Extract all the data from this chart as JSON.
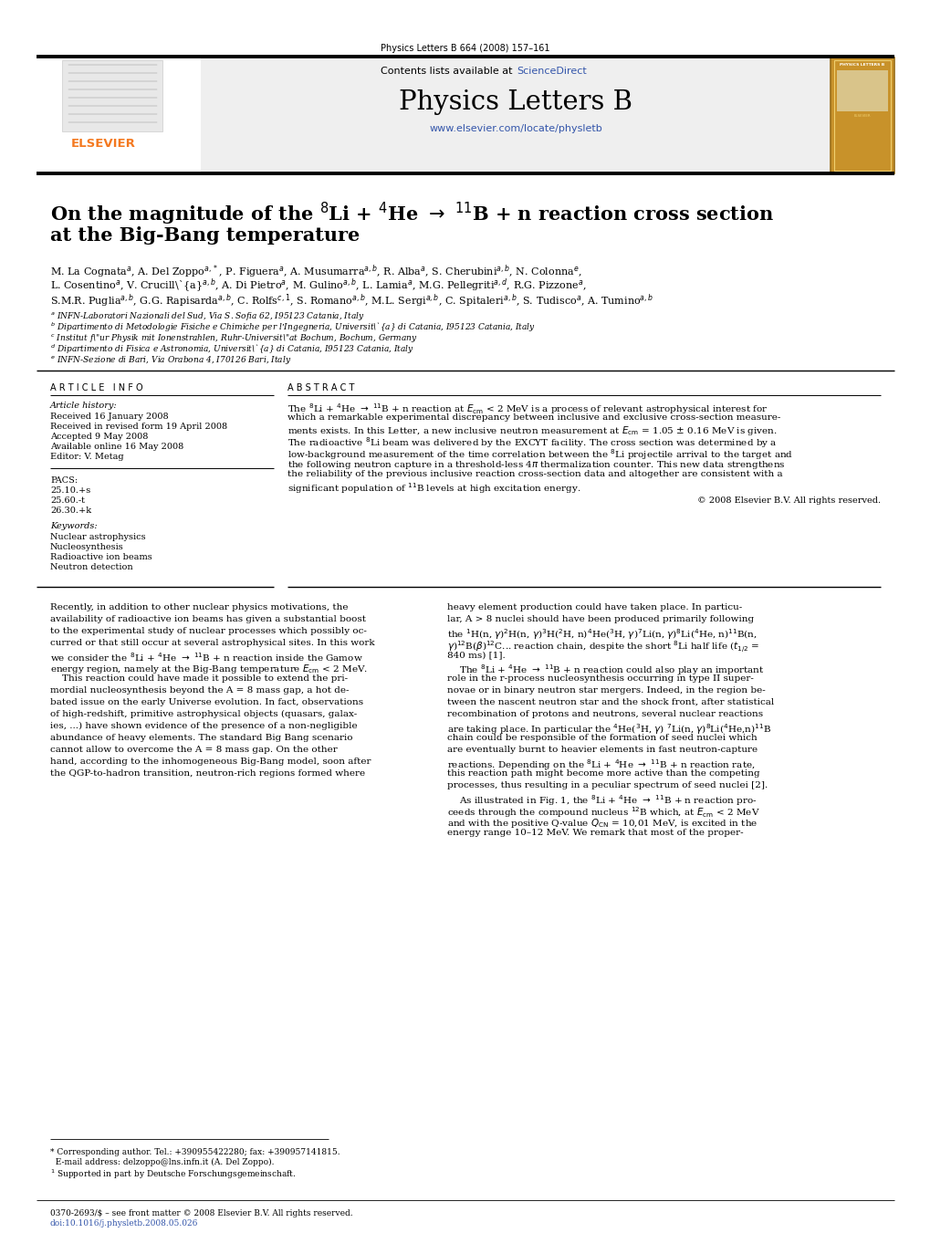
{
  "journal_ref": "Physics Letters B 664 (2008) 157–161",
  "journal_name": "Physics Letters B",
  "journal_url": "www.elsevier.com/locate/physletb",
  "sciencedirect_text": "Contents lists available at ",
  "sciencedirect_link": "ScienceDirect",
  "title_line1": "On the magnitude of the $^{8}$Li + $^{4}$He $\\rightarrow$ $^{11}$B + n reaction cross section",
  "title_line2": "at the Big-Bang temperature",
  "author1": "M. La Cognata$^{a}$, A. Del Zoppo$^{a,*}$, P. Figuera$^{a}$, A. Musumarra$^{a,b}$, R. Alba$^{a}$, S. Cherubini$^{a,b}$, N. Colonna$^{e}$,",
  "author2": "L. Cosentino$^{a}$, V. Crucill\\`{a}$^{a,b}$, A. Di Pietro$^{a}$, M. Gulino$^{a,b}$, L. Lamia$^{a}$, M.G. Pellegriti$^{a,d}$, R.G. Pizzone$^{a}$,",
  "author3": "S.M.R. Puglia$^{a,b}$, G.G. Rapisarda$^{a,b}$, C. Rolfs$^{c,1}$, S. Romano$^{a,b}$, M.L. Sergi$^{a,b}$, C. Spitaleri$^{a,b}$, S. Tudisco$^{a}$, A. Tumino$^{a,b}$",
  "affil_a": "$^{a}$ INFN-Laboratori Nazionali del Sud, Via S. Sofia 62, I95123 Catania, Italy",
  "affil_b": "$^{b}$ Dipartimento di Metodologie Fisiche e Chimiche per l’Ingegneria, Universit\\`{a} di Catania, I95123 Catania, Italy",
  "affil_c": "$^{c}$ Institut f\\\"ur Physik mit Ionenstrahlen, Ruhr-Universit\\\"at Bochum, Bochum, Germany",
  "affil_d": "$^{d}$ Dipartimento di Fisica e Astronomia, Universit\\`{a} di Catania, I95123 Catania, Italy",
  "affil_e": "$^{e}$ INFN-Sezione di Bari, Via Orabona 4, I70126 Bari, Italy",
  "received": "Received 16 January 2008",
  "revised": "Received in revised form 19 April 2008",
  "accepted": "Accepted 9 May 2008",
  "available": "Available online 16 May 2008",
  "editor": "Editor: V. Metag",
  "pacs1": "25.10.+s",
  "pacs2": "25.60.-t",
  "pacs3": "26.30.+k",
  "kw1": "Nuclear astrophysics",
  "kw2": "Nucleosynthesis",
  "kw3": "Radioactive ion beams",
  "kw4": "Neutron detection",
  "copyright": "© 2008 Elsevier B.V. All rights reserved.",
  "footnote1": "* Corresponding author. Tel.: +390955422280; fax: +390957141815.",
  "footnote1b": "  E-mail address: delzoppo@lns.infn.it (A. Del Zoppo).",
  "footnote2": "$^{1}$ Supported in part by Deutsche Forschungsgemeinschaft.",
  "footer1": "0370-2693/$ – see front matter © 2008 Elsevier B.V. All rights reserved.",
  "footer2": "doi:10.1016/j.physletb.2008.05.026",
  "bg_color": "#ffffff",
  "elsevier_orange": "#f47920",
  "link_color": "#3355aa",
  "journal_cover_bg": "#c8922a",
  "header_gray": "#efefef"
}
